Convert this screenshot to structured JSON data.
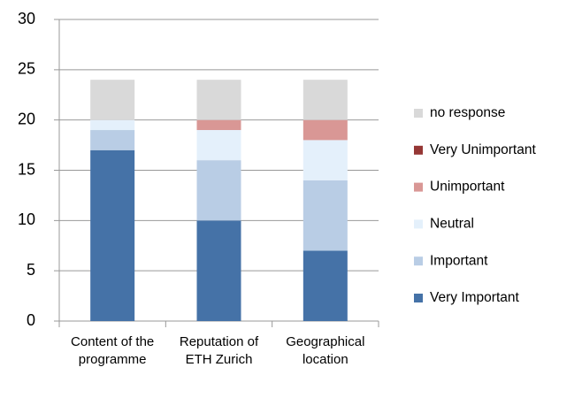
{
  "chart_data": {
    "type": "stacked_bar",
    "categories": [
      "Content of the programme",
      "Reputation of ETH Zurich",
      "Geographical location"
    ],
    "series": [
      {
        "name": "Very Important",
        "color": "#4572a7",
        "values": [
          17,
          10,
          7
        ]
      },
      {
        "name": "Important",
        "color": "#b9cde5",
        "values": [
          2,
          6,
          7
        ]
      },
      {
        "name": "Neutral",
        "color": "#e4f0fb",
        "values": [
          1,
          3,
          4
        ]
      },
      {
        "name": "Unimportant",
        "color": "#d99795",
        "values": [
          0,
          1,
          2
        ]
      },
      {
        "name": "Very Unimportant",
        "color": "#953735",
        "values": [
          0,
          0,
          0
        ]
      },
      {
        "name": "no response",
        "color": "#d9d9d9",
        "values": [
          4,
          4,
          4
        ]
      }
    ],
    "ylim": [
      0,
      30
    ],
    "yticks": [
      0,
      5,
      10,
      15,
      20,
      25,
      30
    ],
    "grid": true,
    "legend": "right"
  }
}
